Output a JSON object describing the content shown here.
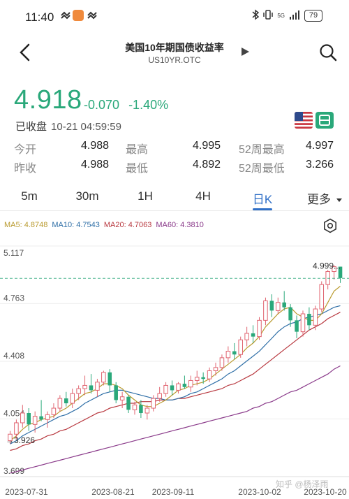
{
  "status_bar": {
    "time": "11:40",
    "signal_label": "5G",
    "battery": "79"
  },
  "nav": {
    "title": "美国10年期国债收益率",
    "subtitle": "US10YR.OTC"
  },
  "quote": {
    "price": "4.918",
    "change": "-0.070",
    "change_pct": "-1.40%",
    "status": "已收盘",
    "time": "10-21 04:59:59"
  },
  "stats": [
    {
      "label1": "今开",
      "value1": "4.988",
      "label2": "最高",
      "value2": "4.995",
      "label3": "52周最高",
      "value3": "4.997"
    },
    {
      "label1": "昨收",
      "value1": "4.988",
      "label2": "最低",
      "value2": "4.892",
      "label3": "52周最低",
      "value3": "3.266"
    }
  ],
  "tabs": {
    "items": [
      "5m",
      "30m",
      "1H",
      "4H",
      "日K"
    ],
    "more": "更多",
    "active": "日K"
  },
  "ma_legend": [
    {
      "label": "MA5: 4.8748",
      "color": "#b99a2e"
    },
    {
      "label": "MA10: 4.7543",
      "color": "#2f6fa7"
    },
    {
      "label": "MA20: 4.7063",
      "color": "#b8383f"
    },
    {
      "label": "MA60: 4.3810",
      "color": "#8a3a8a"
    }
  ],
  "colors": {
    "up": "#e06470",
    "down": "#2aa87a",
    "accent": "#2f6fc7"
  },
  "chart_data": {
    "type": "candlestick",
    "y_ticks": [
      "5.117",
      "4.763",
      "4.408",
      "4.054",
      "3.699"
    ],
    "ylim": [
      3.699,
      5.117
    ],
    "x_ticks": [
      "2023-07-31",
      "2023-08-21",
      "2023-09-11",
      "2023-10-02",
      "2023-10-20"
    ],
    "high_label": "4.999...",
    "low_label": "3.926",
    "last_price_line": 4.918,
    "candles": [
      [
        3.92,
        3.98,
        3.9,
        3.96
      ],
      [
        3.96,
        4.05,
        3.93,
        4.03
      ],
      [
        4.03,
        4.14,
        4.0,
        4.09
      ],
      [
        4.09,
        4.12,
        3.98,
        4.02
      ],
      [
        4.02,
        4.1,
        3.97,
        4.07
      ],
      [
        4.07,
        4.17,
        4.04,
        4.05
      ],
      [
        4.05,
        4.1,
        4.0,
        4.08
      ],
      [
        4.08,
        4.15,
        4.06,
        4.12
      ],
      [
        4.12,
        4.2,
        4.1,
        4.18
      ],
      [
        4.18,
        4.22,
        4.13,
        4.15
      ],
      [
        4.15,
        4.24,
        4.12,
        4.21
      ],
      [
        4.21,
        4.26,
        4.17,
        4.24
      ],
      [
        4.24,
        4.32,
        4.2,
        4.26
      ],
      [
        4.26,
        4.33,
        4.21,
        4.23
      ],
      [
        4.23,
        4.3,
        4.19,
        4.28
      ],
      [
        4.28,
        4.35,
        4.26,
        4.34
      ],
      [
        4.34,
        4.36,
        4.22,
        4.26
      ],
      [
        4.26,
        4.28,
        4.15,
        4.17
      ],
      [
        4.17,
        4.22,
        4.12,
        4.19
      ],
      [
        4.19,
        4.2,
        4.09,
        4.11
      ],
      [
        4.11,
        4.16,
        4.08,
        4.14
      ],
      [
        4.14,
        4.17,
        4.06,
        4.09
      ],
      [
        4.09,
        4.14,
        4.05,
        4.12
      ],
      [
        4.12,
        4.2,
        4.1,
        4.18
      ],
      [
        4.18,
        4.25,
        4.16,
        4.21
      ],
      [
        4.21,
        4.28,
        4.19,
        4.26
      ],
      [
        4.26,
        4.29,
        4.2,
        4.23
      ],
      [
        4.23,
        4.28,
        4.21,
        4.27
      ],
      [
        4.27,
        4.32,
        4.24,
        4.25
      ],
      [
        4.25,
        4.32,
        4.22,
        4.29
      ],
      [
        4.29,
        4.35,
        4.26,
        4.31
      ],
      [
        4.31,
        4.34,
        4.27,
        4.3
      ],
      [
        4.3,
        4.37,
        4.28,
        4.35
      ],
      [
        4.35,
        4.4,
        4.32,
        4.37
      ],
      [
        4.37,
        4.45,
        4.35,
        4.43
      ],
      [
        4.43,
        4.5,
        4.4,
        4.47
      ],
      [
        4.47,
        4.52,
        4.42,
        4.45
      ],
      [
        4.45,
        4.56,
        4.43,
        4.54
      ],
      [
        4.54,
        4.62,
        4.5,
        4.58
      ],
      [
        4.58,
        4.63,
        4.52,
        4.56
      ],
      [
        4.56,
        4.68,
        4.54,
        4.66
      ],
      [
        4.66,
        4.8,
        4.63,
        4.78
      ],
      [
        4.78,
        4.82,
        4.68,
        4.72
      ],
      [
        4.72,
        4.8,
        4.7,
        4.77
      ],
      [
        4.77,
        4.84,
        4.72,
        4.74
      ],
      [
        4.74,
        4.76,
        4.62,
        4.66
      ],
      [
        4.66,
        4.69,
        4.55,
        4.59
      ],
      [
        4.59,
        4.72,
        4.56,
        4.7
      ],
      [
        4.7,
        4.74,
        4.6,
        4.63
      ],
      [
        4.63,
        4.75,
        4.6,
        4.73
      ],
      [
        4.73,
        4.9,
        4.71,
        4.88
      ],
      [
        4.88,
        4.97,
        4.85,
        4.96
      ],
      [
        4.96,
        5.0,
        4.91,
        4.99
      ],
      [
        4.99,
        4.99,
        4.89,
        4.92
      ]
    ],
    "ma5": [
      3.92,
      3.95,
      3.99,
      4.02,
      4.03,
      4.05,
      4.06,
      4.07,
      4.1,
      4.12,
      4.15,
      4.18,
      4.21,
      4.22,
      4.24,
      4.27,
      4.27,
      4.26,
      4.24,
      4.2,
      4.17,
      4.14,
      4.13,
      4.13,
      4.15,
      4.17,
      4.2,
      4.23,
      4.24,
      4.26,
      4.27,
      4.28,
      4.3,
      4.33,
      4.36,
      4.39,
      4.42,
      4.45,
      4.49,
      4.52,
      4.56,
      4.62,
      4.66,
      4.7,
      4.73,
      4.74,
      4.7,
      4.68,
      4.66,
      4.66,
      4.7,
      4.77,
      4.84,
      4.87
    ],
    "ma10": [
      3.9,
      3.92,
      3.95,
      3.97,
      3.99,
      4.01,
      4.03,
      4.05,
      4.07,
      4.08,
      4.1,
      4.12,
      4.15,
      4.17,
      4.19,
      4.21,
      4.22,
      4.23,
      4.23,
      4.22,
      4.21,
      4.2,
      4.19,
      4.18,
      4.18,
      4.17,
      4.17,
      4.18,
      4.19,
      4.21,
      4.22,
      4.24,
      4.26,
      4.28,
      4.3,
      4.33,
      4.35,
      4.38,
      4.41,
      4.44,
      4.47,
      4.51,
      4.55,
      4.59,
      4.62,
      4.64,
      4.65,
      4.67,
      4.68,
      4.69,
      4.7,
      4.72,
      4.74,
      4.75
    ],
    "ma20": [
      3.86,
      3.87,
      3.89,
      3.9,
      3.92,
      3.93,
      3.95,
      3.96,
      3.98,
      3.99,
      4.01,
      4.03,
      4.05,
      4.07,
      4.09,
      4.1,
      4.12,
      4.13,
      4.14,
      4.15,
      4.15,
      4.16,
      4.16,
      4.16,
      4.17,
      4.17,
      4.17,
      4.18,
      4.18,
      4.19,
      4.2,
      4.21,
      4.22,
      4.23,
      4.24,
      4.26,
      4.27,
      4.29,
      4.31,
      4.33,
      4.36,
      4.39,
      4.42,
      4.45,
      4.48,
      4.51,
      4.54,
      4.57,
      4.6,
      4.62,
      4.64,
      4.67,
      4.69,
      4.71
    ],
    "ma60": [
      3.72,
      3.73,
      3.74,
      3.75,
      3.76,
      3.77,
      3.78,
      3.79,
      3.8,
      3.81,
      3.82,
      3.83,
      3.84,
      3.85,
      3.86,
      3.87,
      3.88,
      3.89,
      3.9,
      3.91,
      3.92,
      3.93,
      3.94,
      3.95,
      3.96,
      3.97,
      3.98,
      3.99,
      4.0,
      4.01,
      4.02,
      4.03,
      4.04,
      4.05,
      4.06,
      4.07,
      4.08,
      4.09,
      4.1,
      4.12,
      4.13,
      4.15,
      4.16,
      4.18,
      4.2,
      4.22,
      4.23,
      4.25,
      4.27,
      4.29,
      4.31,
      4.33,
      4.36,
      4.38
    ]
  },
  "watermark": "知乎 @杨泽雨"
}
